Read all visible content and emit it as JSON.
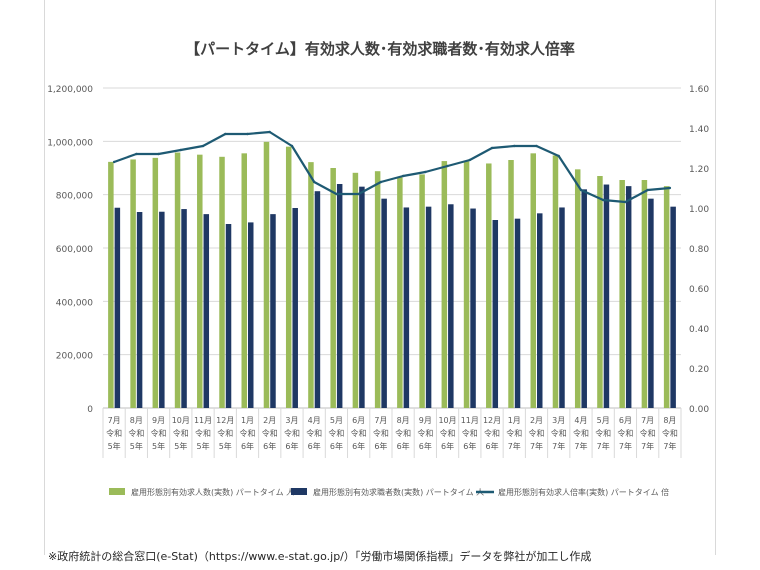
{
  "chart_data": {
    "type": "bar",
    "title": "【パートタイム】有効求人数･有効求職者数･有効求人倍率",
    "categories": [
      [
        "7月",
        "令和",
        "5年"
      ],
      [
        "8月",
        "令和",
        "5年"
      ],
      [
        "9月",
        "令和",
        "5年"
      ],
      [
        "10月",
        "令和",
        "5年"
      ],
      [
        "11月",
        "令和",
        "5年"
      ],
      [
        "12月",
        "令和",
        "5年"
      ],
      [
        "1月",
        "令和",
        "6年"
      ],
      [
        "2月",
        "令和",
        "6年"
      ],
      [
        "3月",
        "令和",
        "6年"
      ],
      [
        "4月",
        "令和",
        "6年"
      ],
      [
        "5月",
        "令和",
        "6年"
      ],
      [
        "6月",
        "令和",
        "6年"
      ],
      [
        "7月",
        "令和",
        "6年"
      ],
      [
        "8月",
        "令和",
        "6年"
      ],
      [
        "9月",
        "令和",
        "6年"
      ],
      [
        "10月",
        "令和",
        "6年"
      ],
      [
        "11月",
        "令和",
        "6年"
      ],
      [
        "12月",
        "令和",
        "6年"
      ],
      [
        "1月",
        "令和",
        "7年"
      ],
      [
        "2月",
        "令和",
        "7年"
      ],
      [
        "3月",
        "令和",
        "7年"
      ],
      [
        "4月",
        "令和",
        "7年"
      ],
      [
        "5月",
        "令和",
        "7年"
      ],
      [
        "6月",
        "令和",
        "7年"
      ],
      [
        "7月",
        "令和",
        "7年"
      ],
      [
        "8月",
        "令和",
        "7年"
      ]
    ],
    "series": [
      {
        "name": "雇用形態別有効求人数(実数) パートタイム 人",
        "axis": "left",
        "color": "#9bbb59",
        "values": [
          923000,
          932000,
          938000,
          958000,
          950000,
          942000,
          955000,
          998000,
          980000,
          922000,
          900000,
          882000,
          888000,
          866000,
          876000,
          926000,
          925000,
          917000,
          930000,
          955000,
          947000,
          895000,
          870000,
          855000,
          855000,
          832000
        ]
      },
      {
        "name": "雇用形態別有効求職者数(実数) パートタイム 人",
        "axis": "left",
        "color": "#1f3864",
        "values": [
          751000,
          735000,
          736000,
          746000,
          727000,
          690000,
          696000,
          727000,
          750000,
          813000,
          840000,
          830000,
          785000,
          752000,
          755000,
          764000,
          748000,
          705000,
          710000,
          730000,
          752000,
          820000,
          838000,
          832000,
          785000,
          755000
        ]
      },
      {
        "name": "雇用形態別有効求人倍率(実数) パートタイム 倍",
        "axis": "right",
        "color": "#1e5a73",
        "type": "line",
        "values": [
          1.23,
          1.27,
          1.27,
          1.29,
          1.31,
          1.37,
          1.37,
          1.38,
          1.31,
          1.13,
          1.07,
          1.07,
          1.13,
          1.16,
          1.18,
          1.21,
          1.24,
          1.3,
          1.31,
          1.31,
          1.26,
          1.09,
          1.04,
          1.03,
          1.09,
          1.1
        ]
      }
    ],
    "ylim_left": [
      0,
      1200000
    ],
    "ylim_right": [
      0,
      1.6
    ],
    "yticks_left": [
      "0",
      "200,000",
      "400,000",
      "600,000",
      "800,000",
      "1,000,000",
      "1,200,000"
    ],
    "yticks_right": [
      "0.00",
      "0.20",
      "0.40",
      "0.60",
      "0.80",
      "1.00",
      "1.20",
      "1.40",
      "1.60"
    ],
    "grid": true,
    "legend_position": "bottom"
  },
  "footnote": "※政府統計の総合窓口(e-Stat)（https://www.e-stat.go.jp/）「労働市場関係指標」データを弊社が加工し作成"
}
